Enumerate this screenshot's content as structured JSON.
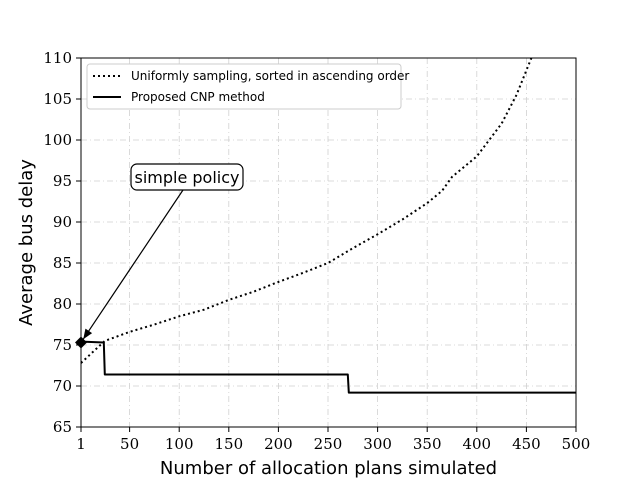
{
  "chart_data": {
    "type": "line",
    "xlabel": "Number of allocation plans simulated",
    "ylabel": "Average bus delay",
    "xlim": [
      1,
      500
    ],
    "ylim": [
      65,
      110
    ],
    "x_ticks": [
      1,
      50,
      100,
      150,
      200,
      250,
      300,
      350,
      400,
      450,
      500
    ],
    "y_ticks": [
      65,
      70,
      75,
      80,
      85,
      90,
      95,
      100,
      105,
      110
    ],
    "grid": true,
    "legend_position": "top-left",
    "series": [
      {
        "name": "Uniformly sampling, sorted in ascending order",
        "style": "dotted",
        "color": "#000000",
        "x": [
          1,
          25,
          50,
          75,
          100,
          125,
          150,
          175,
          200,
          225,
          250,
          275,
          300,
          325,
          350,
          365,
          375,
          400,
          425,
          440,
          450,
          455
        ],
        "y": [
          72.8,
          75.5,
          76.6,
          77.5,
          78.5,
          79.3,
          80.5,
          81.5,
          82.7,
          83.8,
          85.0,
          86.8,
          88.5,
          90.3,
          92.3,
          93.8,
          95.5,
          98.0,
          102.0,
          105.5,
          108.5,
          110.0
        ]
      },
      {
        "name": "Proposed CNP method",
        "style": "solid",
        "color": "#000000",
        "x": [
          1,
          5,
          24,
          25,
          270,
          271,
          500
        ],
        "y": [
          75.3,
          75.4,
          75.3,
          71.4,
          71.4,
          69.2,
          69.2
        ]
      }
    ],
    "markers": [
      {
        "x": 1,
        "y": 75.3,
        "shape": "diamond"
      }
    ],
    "annotations": [
      {
        "text": "simple policy",
        "arrow_to": {
          "x": 1,
          "y": 75.3
        }
      }
    ]
  }
}
